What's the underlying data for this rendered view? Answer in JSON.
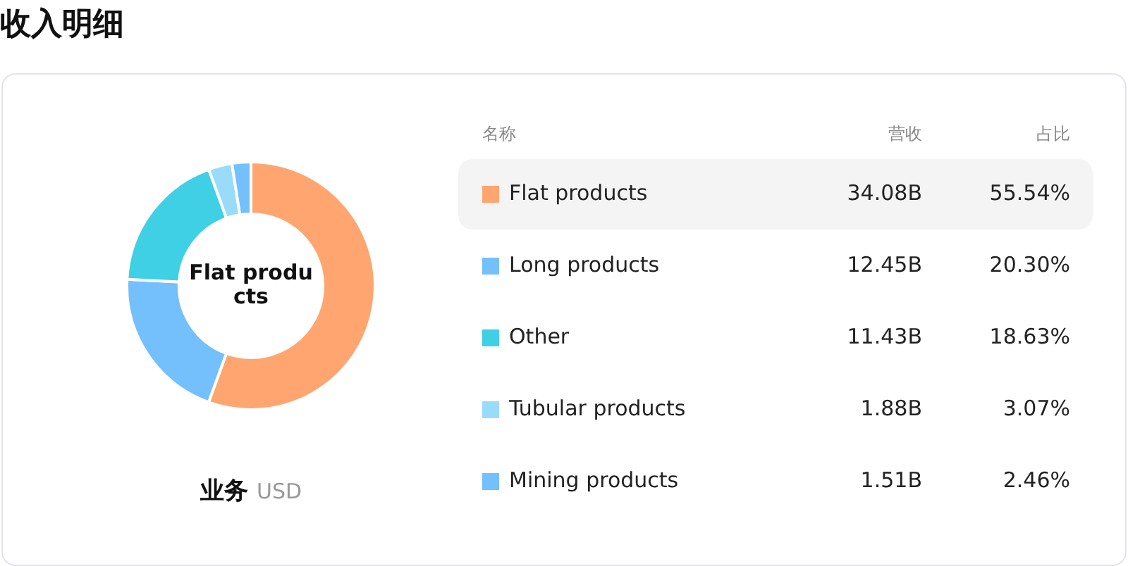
{
  "chart_data": {
    "type": "donut",
    "title": "收入明细",
    "xlabel": "业务",
    "categories": [
      "Flat products",
      "Long products",
      "Other",
      "Tubular products",
      "Mining products"
    ],
    "values": [
      34.08,
      12.45,
      11.43,
      1.88,
      1.51
    ],
    "value_labels": [
      "34.08B",
      "12.45B",
      "11.43B",
      "1.88B",
      "1.51B"
    ],
    "colors": [
      "#ffa570",
      "#74c0fc",
      "#40d0e6",
      "#99dcfa",
      "#74c0fc"
    ],
    "annotations": [
      "名称",
      "营收",
      "占比",
      "Flat products",
      "USD",
      "55.54%",
      "20.30%",
      "18.63%",
      "3.07%",
      "2.46%"
    ],
    "legend": "right"
  }
}
